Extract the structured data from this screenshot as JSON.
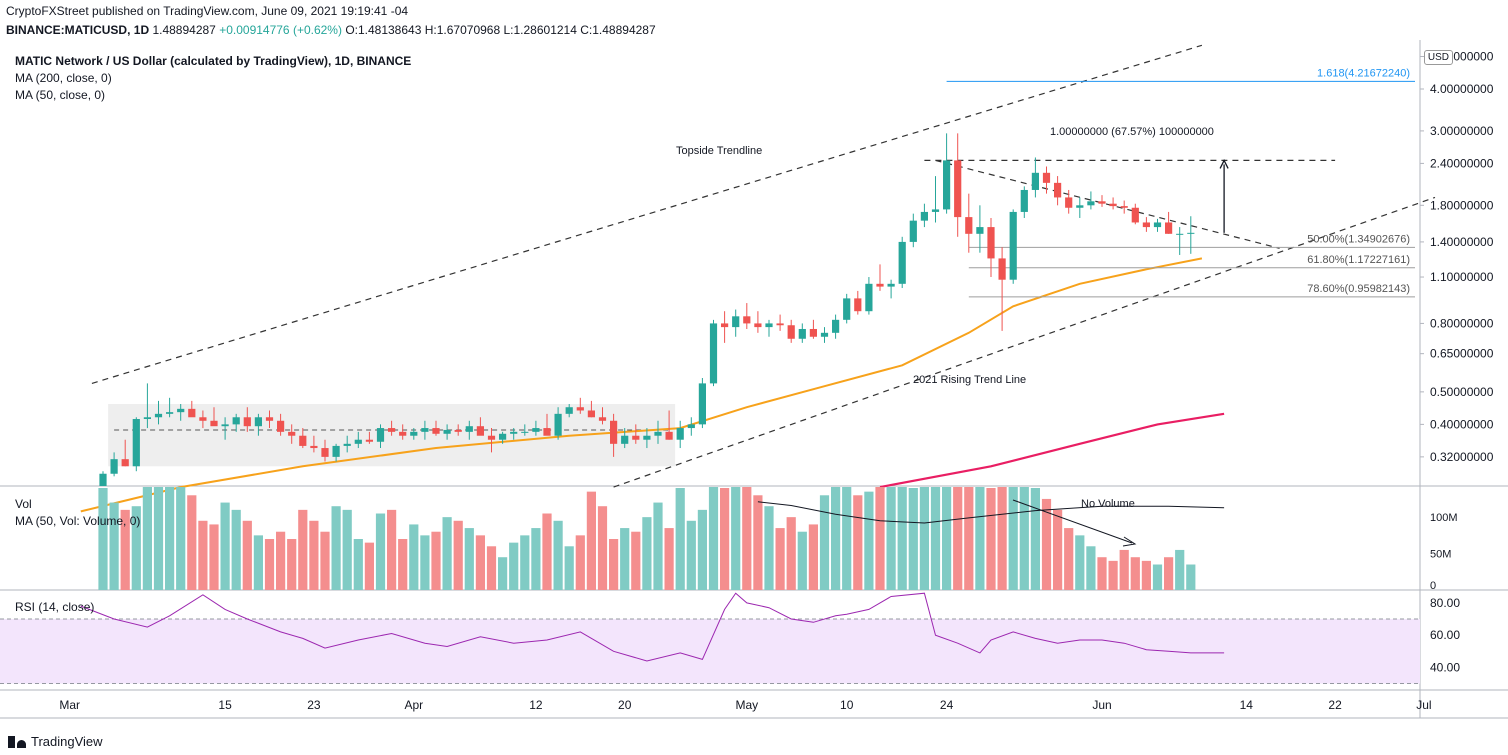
{
  "header": {
    "line1": "CryptoFXStreet published on TradingView.com, June 09, 2021 19:19:41 -04",
    "symbol": "BINANCE:MATICUSD, 1D",
    "last": "1.48894287",
    "change": "+0.00914776 (+0.62%)",
    "ohlc": {
      "o": "O:1.48138643",
      "h": "H:1.67070968",
      "l": "L:1.28601214",
      "c": "C:1.48894287"
    },
    "title": "MATIC Network / US Dollar (calculated by TradingView), 1D, BINANCE",
    "ma200": "MA (200, close, 0)",
    "ma50": "MA (50, close, 0)"
  },
  "volume_pane": {
    "label": "Vol",
    "ma": "MA (50, Vol: Volume, 0)"
  },
  "rsi_pane": {
    "label": "RSI (14, close)"
  },
  "currency": "USD",
  "brand": "TradingView",
  "colors": {
    "up": "#26a69a",
    "down": "#ef5350",
    "ma50": "#f7a21b",
    "ma200": "#e91e63",
    "rsi": "#9c27b0",
    "fib_top": "#2196f3",
    "vol_up": "#80cbc4",
    "vol_down": "#f48e8e"
  },
  "chart_data": {
    "type": "candlestick",
    "scale": "log",
    "price_ticks": [
      {
        "v": 5.0,
        "t": "5.00000000"
      },
      {
        "v": 4.0,
        "t": "4.00000000"
      },
      {
        "v": 3.0,
        "t": "3.00000000"
      },
      {
        "v": 2.4,
        "t": "2.40000000"
      },
      {
        "v": 1.8,
        "t": "1.80000000"
      },
      {
        "v": 1.4,
        "t": "1.40000000"
      },
      {
        "v": 1.1,
        "t": "1.10000000"
      },
      {
        "v": 0.8,
        "t": "0.80000000"
      },
      {
        "v": 0.65,
        "t": "0.65000000"
      },
      {
        "v": 0.5,
        "t": "0.50000000"
      },
      {
        "v": 0.4,
        "t": "0.40000000"
      },
      {
        "v": 0.32,
        "t": "0.32000000"
      }
    ],
    "x_ticks": [
      {
        "i": -3,
        "t": "Mar"
      },
      {
        "i": 11,
        "t": "15"
      },
      {
        "i": 19,
        "t": "23"
      },
      {
        "i": 28,
        "t": "Apr"
      },
      {
        "i": 39,
        "t": "12"
      },
      {
        "i": 47,
        "t": "20"
      },
      {
        "i": 58,
        "t": "May"
      },
      {
        "i": 67,
        "t": "10"
      },
      {
        "i": 76,
        "t": "24"
      },
      {
        "i": 90,
        "t": "Jun"
      },
      {
        "i": 103,
        "t": "14"
      },
      {
        "i": 111,
        "t": "22"
      },
      {
        "i": 119,
        "t": "Jul"
      }
    ],
    "candles": [
      [
        0.2,
        0.29,
        0.2,
        0.285
      ],
      [
        0.285,
        0.33,
        0.28,
        0.315
      ],
      [
        0.315,
        0.36,
        0.3,
        0.3
      ],
      [
        0.3,
        0.42,
        0.29,
        0.415
      ],
      [
        0.415,
        0.53,
        0.39,
        0.42
      ],
      [
        0.42,
        0.47,
        0.4,
        0.43
      ],
      [
        0.43,
        0.48,
        0.42,
        0.435
      ],
      [
        0.435,
        0.46,
        0.41,
        0.445
      ],
      [
        0.445,
        0.47,
        0.43,
        0.42
      ],
      [
        0.42,
        0.44,
        0.39,
        0.41
      ],
      [
        0.41,
        0.45,
        0.4,
        0.395
      ],
      [
        0.395,
        0.42,
        0.36,
        0.4
      ],
      [
        0.4,
        0.43,
        0.38,
        0.42
      ],
      [
        0.42,
        0.45,
        0.38,
        0.395
      ],
      [
        0.395,
        0.43,
        0.37,
        0.42
      ],
      [
        0.42,
        0.44,
        0.39,
        0.41
      ],
      [
        0.41,
        0.43,
        0.37,
        0.38
      ],
      [
        0.38,
        0.4,
        0.35,
        0.37
      ],
      [
        0.37,
        0.39,
        0.34,
        0.345
      ],
      [
        0.345,
        0.37,
        0.33,
        0.34
      ],
      [
        0.34,
        0.36,
        0.31,
        0.32
      ],
      [
        0.32,
        0.35,
        0.31,
        0.345
      ],
      [
        0.345,
        0.37,
        0.33,
        0.35
      ],
      [
        0.35,
        0.38,
        0.34,
        0.36
      ],
      [
        0.36,
        0.38,
        0.35,
        0.355
      ],
      [
        0.355,
        0.4,
        0.34,
        0.39
      ],
      [
        0.39,
        0.41,
        0.37,
        0.38
      ],
      [
        0.38,
        0.4,
        0.36,
        0.37
      ],
      [
        0.37,
        0.39,
        0.36,
        0.38
      ],
      [
        0.38,
        0.41,
        0.36,
        0.39
      ],
      [
        0.39,
        0.41,
        0.37,
        0.375
      ],
      [
        0.375,
        0.4,
        0.36,
        0.385
      ],
      [
        0.385,
        0.4,
        0.37,
        0.38
      ],
      [
        0.38,
        0.41,
        0.36,
        0.395
      ],
      [
        0.395,
        0.42,
        0.38,
        0.37
      ],
      [
        0.37,
        0.39,
        0.33,
        0.36
      ],
      [
        0.36,
        0.38,
        0.35,
        0.375
      ],
      [
        0.375,
        0.39,
        0.36,
        0.38
      ],
      [
        0.38,
        0.4,
        0.37,
        0.38
      ],
      [
        0.38,
        0.41,
        0.37,
        0.39
      ],
      [
        0.39,
        0.43,
        0.38,
        0.37
      ],
      [
        0.37,
        0.45,
        0.36,
        0.43
      ],
      [
        0.43,
        0.46,
        0.42,
        0.45
      ],
      [
        0.45,
        0.48,
        0.43,
        0.44
      ],
      [
        0.44,
        0.47,
        0.42,
        0.42
      ],
      [
        0.42,
        0.45,
        0.4,
        0.41
      ],
      [
        0.41,
        0.43,
        0.32,
        0.35
      ],
      [
        0.35,
        0.39,
        0.34,
        0.37
      ],
      [
        0.37,
        0.4,
        0.35,
        0.36
      ],
      [
        0.36,
        0.39,
        0.34,
        0.37
      ],
      [
        0.37,
        0.41,
        0.35,
        0.38
      ],
      [
        0.38,
        0.44,
        0.36,
        0.36
      ],
      [
        0.36,
        0.41,
        0.34,
        0.39
      ],
      [
        0.39,
        0.42,
        0.37,
        0.4
      ],
      [
        0.4,
        0.55,
        0.39,
        0.53
      ],
      [
        0.53,
        0.82,
        0.52,
        0.8
      ],
      [
        0.8,
        0.87,
        0.7,
        0.78
      ],
      [
        0.78,
        0.88,
        0.73,
        0.84
      ],
      [
        0.84,
        0.92,
        0.77,
        0.8
      ],
      [
        0.8,
        0.87,
        0.75,
        0.78
      ],
      [
        0.78,
        0.82,
        0.73,
        0.8
      ],
      [
        0.8,
        0.85,
        0.76,
        0.79
      ],
      [
        0.79,
        0.82,
        0.7,
        0.72
      ],
      [
        0.72,
        0.8,
        0.7,
        0.77
      ],
      [
        0.77,
        0.82,
        0.72,
        0.73
      ],
      [
        0.73,
        0.78,
        0.7,
        0.75
      ],
      [
        0.75,
        0.85,
        0.72,
        0.82
      ],
      [
        0.82,
        0.98,
        0.8,
        0.95
      ],
      [
        0.95,
        1.0,
        0.85,
        0.87
      ],
      [
        0.87,
        1.1,
        0.85,
        1.05
      ],
      [
        1.05,
        1.2,
        1.0,
        1.03
      ],
      [
        1.03,
        1.08,
        0.95,
        1.05
      ],
      [
        1.05,
        1.45,
        1.02,
        1.4
      ],
      [
        1.4,
        1.7,
        1.35,
        1.62
      ],
      [
        1.62,
        1.82,
        1.55,
        1.72
      ],
      [
        1.72,
        2.2,
        1.6,
        1.75
      ],
      [
        1.75,
        2.95,
        1.7,
        2.45
      ],
      [
        2.45,
        2.95,
        1.45,
        1.66
      ],
      [
        1.66,
        1.95,
        1.3,
        1.48
      ],
      [
        1.48,
        1.8,
        1.3,
        1.55
      ],
      [
        1.55,
        1.65,
        1.1,
        1.25
      ],
      [
        1.25,
        1.35,
        0.76,
        1.08
      ],
      [
        1.08,
        1.75,
        1.05,
        1.72
      ],
      [
        1.72,
        2.05,
        1.65,
        2.0
      ],
      [
        2.0,
        2.5,
        1.9,
        2.25
      ],
      [
        2.25,
        2.35,
        1.95,
        2.1
      ],
      [
        2.1,
        2.2,
        1.8,
        1.9
      ],
      [
        1.9,
        2.0,
        1.7,
        1.77
      ],
      [
        1.77,
        1.9,
        1.65,
        1.8
      ],
      [
        1.8,
        1.98,
        1.75,
        1.85
      ],
      [
        1.85,
        1.93,
        1.78,
        1.82
      ],
      [
        1.82,
        1.9,
        1.75,
        1.79
      ],
      [
        1.79,
        1.86,
        1.7,
        1.77
      ],
      [
        1.77,
        1.82,
        1.58,
        1.6
      ],
      [
        1.6,
        1.66,
        1.5,
        1.55
      ],
      [
        1.55,
        1.64,
        1.5,
        1.6
      ],
      [
        1.6,
        1.72,
        1.48,
        1.48
      ],
      [
        1.48,
        1.55,
        1.28,
        1.48
      ],
      [
        1.48,
        1.67,
        1.29,
        1.49
      ]
    ],
    "ma50": [
      [
        -2,
        0.22
      ],
      [
        7,
        0.26
      ],
      [
        18,
        0.3
      ],
      [
        30,
        0.34
      ],
      [
        42,
        0.37
      ],
      [
        52,
        0.39
      ],
      [
        58,
        0.45
      ],
      [
        65,
        0.52
      ],
      [
        72,
        0.6
      ],
      [
        78,
        0.75
      ],
      [
        82,
        0.9
      ],
      [
        88,
        1.05
      ],
      [
        94,
        1.16
      ],
      [
        99,
        1.25
      ]
    ],
    "ma200": [
      [
        70,
        0.26
      ],
      [
        80,
        0.3
      ],
      [
        88,
        0.35
      ],
      [
        95,
        0.4
      ],
      [
        101,
        0.43
      ]
    ],
    "channel_upper": [
      [
        -1,
        0.53
      ],
      [
        99,
        5.4
      ]
    ],
    "channel_lower": [
      [
        46,
        0.26
      ],
      [
        120,
        1.9
      ]
    ],
    "consolidation_box": {
      "i0": 1,
      "i1": 51,
      "top": 0.46,
      "bottom": 0.3
    },
    "consolidation_mid": 0.385,
    "pennant": [
      [
        75,
        2.45
      ],
      [
        106,
        1.34
      ]
    ],
    "swing_high": {
      "i0": 74,
      "i1": 111,
      "v": 2.45
    },
    "target_arrow": {
      "i": 101,
      "v0": 1.49,
      "v1": 2.45
    },
    "fib_levels": [
      {
        "v": 4.2167224,
        "label": "1.618(4.21672240)",
        "i0": 76
      },
      {
        "v": 1.34902676,
        "label": "50.00%(1.34902676)",
        "i0": 78
      },
      {
        "v": 1.17227161,
        "label": "61.80%(1.17227161)",
        "i0": 78
      },
      {
        "v": 0.95982143,
        "label": "78.60%(0.95982143)",
        "i0": 78
      }
    ],
    "annotations": {
      "target": "1.00000000 (67.57%) 100000000",
      "topside": "Topside Trendline",
      "rising": "2021 Rising Trend Line",
      "novolume": "No Volume"
    },
    "volume": [
      140,
      120,
      110,
      115,
      160,
      190,
      175,
      150,
      130,
      95,
      90,
      120,
      110,
      95,
      75,
      70,
      80,
      70,
      110,
      95,
      80,
      115,
      110,
      70,
      65,
      105,
      110,
      70,
      90,
      75,
      80,
      100,
      95,
      85,
      75,
      60,
      45,
      65,
      75,
      85,
      105,
      95,
      60,
      75,
      135,
      115,
      70,
      85,
      80,
      100,
      120,
      85,
      140,
      95,
      110,
      170,
      140,
      150,
      145,
      130,
      115,
      85,
      100,
      80,
      90,
      130,
      190,
      170,
      130,
      135,
      180,
      160,
      190,
      140,
      150,
      165,
      160,
      190,
      150,
      165,
      140,
      185,
      150,
      145,
      140,
      125,
      110,
      85,
      75,
      60,
      45,
      40,
      55,
      45,
      40,
      35,
      45,
      55,
      35
    ],
    "volume_ma": [
      [
        59,
        121
      ],
      [
        62,
        116
      ],
      [
        66,
        104
      ],
      [
        70,
        95
      ],
      [
        74,
        92
      ],
      [
        78,
        99
      ],
      [
        84,
        109
      ],
      [
        90,
        115
      ],
      [
        96,
        115
      ],
      [
        101,
        113
      ]
    ],
    "volume_ticks": [
      {
        "v": 100,
        "t": "100M"
      },
      {
        "v": 50,
        "t": "50M"
      },
      {
        "v": 0,
        "t": "0"
      }
    ],
    "rsi": [
      [
        -2,
        78
      ],
      [
        1,
        70
      ],
      [
        4,
        65
      ],
      [
        6,
        72
      ],
      [
        9,
        85
      ],
      [
        11,
        76
      ],
      [
        13,
        70
      ],
      [
        16,
        62
      ],
      [
        18,
        58
      ],
      [
        20,
        52
      ],
      [
        23,
        57
      ],
      [
        26,
        61
      ],
      [
        29,
        55
      ],
      [
        31,
        53
      ],
      [
        34,
        59
      ],
      [
        37,
        55
      ],
      [
        40,
        57
      ],
      [
        43,
        62
      ],
      [
        46,
        50
      ],
      [
        49,
        44
      ],
      [
        52,
        49
      ],
      [
        54,
        45
      ],
      [
        56,
        76
      ],
      [
        57,
        86
      ],
      [
        58,
        80
      ],
      [
        60,
        77
      ],
      [
        62,
        70
      ],
      [
        64,
        68
      ],
      [
        66,
        72
      ],
      [
        67,
        73
      ],
      [
        69,
        76
      ],
      [
        71,
        84
      ],
      [
        74,
        86
      ],
      [
        75,
        60
      ],
      [
        77,
        55
      ],
      [
        79,
        49
      ],
      [
        80,
        57
      ],
      [
        82,
        62
      ],
      [
        84,
        58
      ],
      [
        86,
        55
      ],
      [
        88,
        57
      ],
      [
        90,
        57
      ],
      [
        92,
        55
      ],
      [
        94,
        51
      ],
      [
        96,
        50
      ],
      [
        98,
        49
      ],
      [
        101,
        49
      ]
    ],
    "rsi_ticks": [
      {
        "v": 80,
        "t": "80.00"
      },
      {
        "v": 60,
        "t": "60.00"
      },
      {
        "v": 40,
        "t": "40.00"
      }
    ],
    "rsi_band": [
      70,
      30
    ]
  }
}
